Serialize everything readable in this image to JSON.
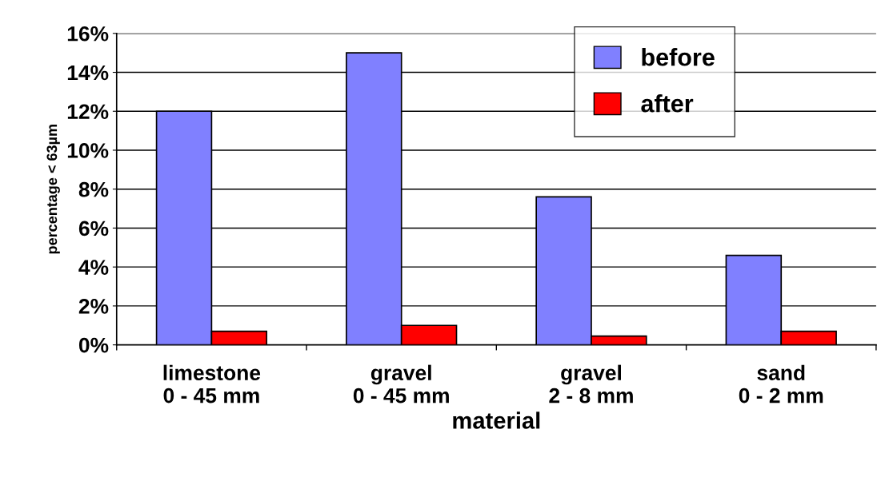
{
  "chart_data": {
    "type": "bar",
    "xlabel": "material",
    "ylabel": "percentage < 63µm",
    "categories": [
      "limestone\n0 - 45 mm",
      "gravel\n0 - 45 mm",
      "gravel\n2 - 8 mm",
      "sand\n0 - 2 mm"
    ],
    "series": [
      {
        "name": "before",
        "color": "#8080ff",
        "values": [
          12,
          15,
          7.6,
          4.6
        ]
      },
      {
        "name": "after",
        "color": "#ff0000",
        "values": [
          0.7,
          1.0,
          0.45,
          0.7
        ]
      }
    ],
    "ylim": [
      0,
      16
    ],
    "yticks": [
      {
        "value": 0,
        "label": "0%"
      },
      {
        "value": 2,
        "label": "2%"
      },
      {
        "value": 4,
        "label": "4%"
      },
      {
        "value": 6,
        "label": "6%"
      },
      {
        "value": 8,
        "label": "8%"
      },
      {
        "value": 10,
        "label": "10%"
      },
      {
        "value": 12,
        "label": "12%"
      },
      {
        "value": 14,
        "label": "14%"
      },
      {
        "value": 16,
        "label": "16%"
      }
    ],
    "grid": "y",
    "legend": "top right"
  }
}
